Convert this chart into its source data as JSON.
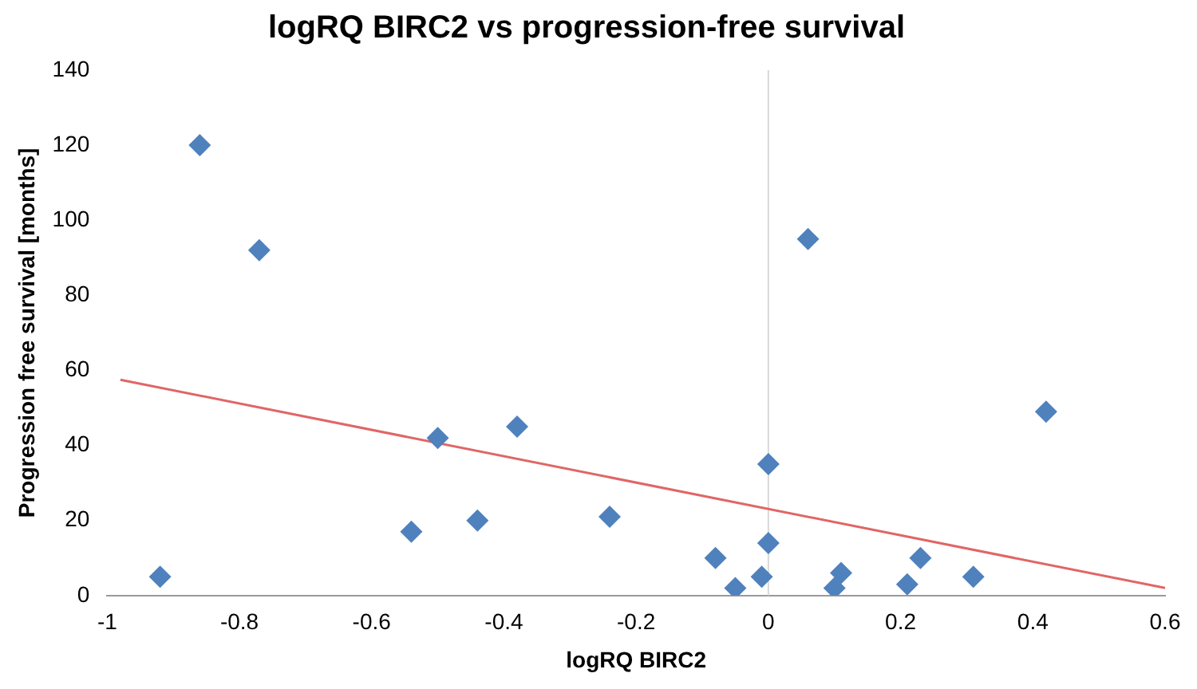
{
  "chart_data": {
    "type": "scatter",
    "title": "logRQ BIRC2 vs progression-free survival",
    "xlabel": "logRQ BIRC2",
    "ylabel": "Progression free survival [months]",
    "grid": false,
    "legend": false,
    "xlim": [
      -1,
      0.6
    ],
    "xticks": [
      -1,
      -0.8,
      -0.6,
      -0.4,
      -0.2,
      0,
      0.2,
      0.4,
      0.6
    ],
    "ylim": [
      0,
      140
    ],
    "yticks": [
      0,
      20,
      40,
      60,
      80,
      100,
      120,
      140
    ],
    "ref_lines": [
      {
        "axis": "x",
        "value": 0,
        "color": "#d9d9d9"
      }
    ],
    "series": [
      {
        "type": "scatter",
        "marker": "diamond",
        "color": "#4f81bd",
        "x": [
          -0.86,
          -0.77,
          0.06,
          0.42,
          -0.38,
          -0.5,
          0,
          -0.54,
          -0.44,
          -0.24,
          0,
          -0.08,
          -0.92,
          -0.05,
          -0.01,
          0.1,
          0.11,
          0.21,
          0.23,
          0.31
        ],
        "values": [
          120,
          92,
          95,
          49,
          45,
          42,
          35,
          17,
          20,
          21,
          14,
          10,
          5,
          2,
          5,
          2,
          6,
          3,
          10,
          5
        ]
      },
      {
        "type": "line",
        "color": "#e06666",
        "x": [
          -0.98,
          0.6
        ],
        "values": [
          57.5,
          2
        ]
      }
    ]
  }
}
